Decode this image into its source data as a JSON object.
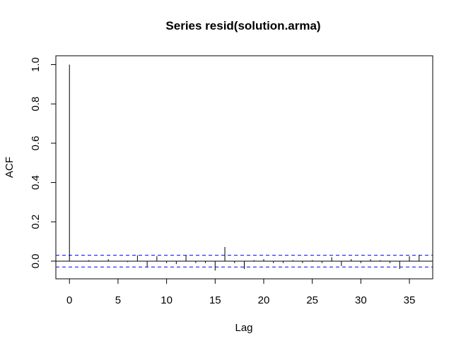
{
  "chart_data": {
    "type": "bar",
    "title": "Series  resid(solution.arma)",
    "xlabel": "Lag",
    "ylabel": "ACF",
    "xlim": [
      -1.4,
      37.4
    ],
    "ylim": [
      -0.09,
      1.045
    ],
    "xticks": [
      0,
      5,
      10,
      15,
      20,
      25,
      30,
      35
    ],
    "yticks": [
      0.0,
      0.2,
      0.4,
      0.6,
      0.8,
      1.0
    ],
    "ytick_labels": [
      "0.0",
      "0.2",
      "0.4",
      "0.6",
      "0.8",
      "1.0"
    ],
    "confidence_bounds": [
      0.03,
      -0.03
    ],
    "series_color": "#000000",
    "confidence_color": "#0000ff",
    "grid": false,
    "lags": [
      0,
      1,
      2,
      3,
      4,
      5,
      6,
      7,
      8,
      9,
      10,
      11,
      12,
      13,
      14,
      15,
      16,
      17,
      18,
      19,
      20,
      21,
      22,
      23,
      24,
      25,
      26,
      27,
      28,
      29,
      30,
      31,
      32,
      33,
      34,
      35,
      36
    ],
    "acf": [
      1.0,
      0.0,
      0.005,
      0.0,
      0.01,
      0.0,
      -0.005,
      0.03,
      -0.03,
      0.025,
      -0.01,
      -0.015,
      0.03,
      -0.01,
      -0.01,
      -0.048,
      0.072,
      -0.01,
      -0.04,
      0.005,
      0.01,
      -0.01,
      -0.01,
      0.005,
      -0.01,
      0.005,
      -0.01,
      0.02,
      -0.025,
      0.01,
      -0.01,
      0.01,
      0.005,
      -0.01,
      -0.04,
      0.025,
      0.03
    ]
  }
}
